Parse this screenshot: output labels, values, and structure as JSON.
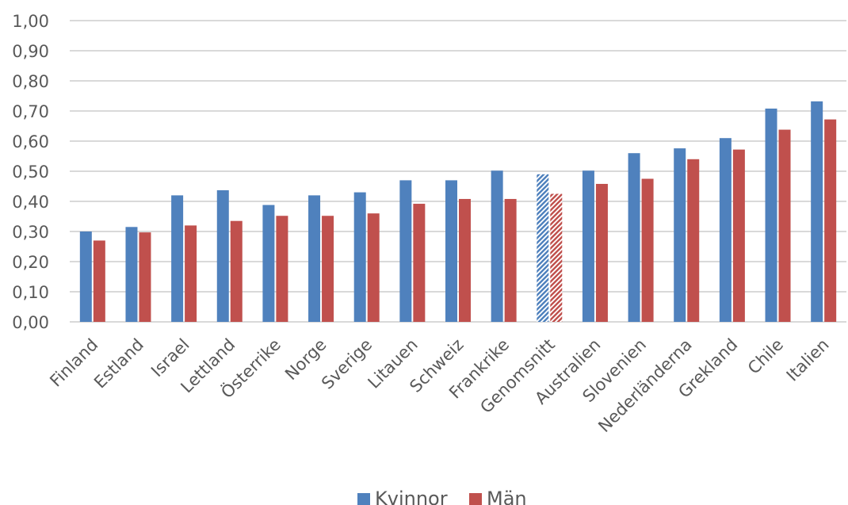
{
  "chart_data": {
    "type": "bar",
    "categories": [
      "Finland",
      "Estland",
      "Israel",
      "Lettland",
      "Österrike",
      "Norge",
      "Sverige",
      "Litauen",
      "Schweiz",
      "Frankrike",
      "Genomsnitt",
      "Australien",
      "Slovenien",
      "Nederländerna",
      "Grekland",
      "Chile",
      "Italien"
    ],
    "series": [
      {
        "name": "Kvinnor",
        "color": "#4f81bd",
        "values": [
          0.3,
          0.315,
          0.42,
          0.437,
          0.388,
          0.42,
          0.43,
          0.47,
          0.47,
          0.502,
          0.49,
          0.502,
          0.56,
          0.576,
          0.61,
          0.708,
          0.732
        ]
      },
      {
        "name": "Män",
        "color": "#c0504d",
        "values": [
          0.27,
          0.297,
          0.32,
          0.335,
          0.352,
          0.352,
          0.36,
          0.392,
          0.408,
          0.408,
          0.425,
          0.458,
          0.475,
          0.54,
          0.572,
          0.638,
          0.672
        ]
      }
    ],
    "highlight_category": "Genomsnitt",
    "highlight_style": "patterned",
    "ylim": [
      0,
      1.0
    ],
    "yticks": [
      "0,00",
      "0,10",
      "0,20",
      "0,30",
      "0,40",
      "0,50",
      "0,60",
      "0,70",
      "0,80",
      "0,90",
      "1,00"
    ],
    "grid": true,
    "legend_position": "bottom",
    "title": "",
    "xlabel": "",
    "ylabel": ""
  }
}
